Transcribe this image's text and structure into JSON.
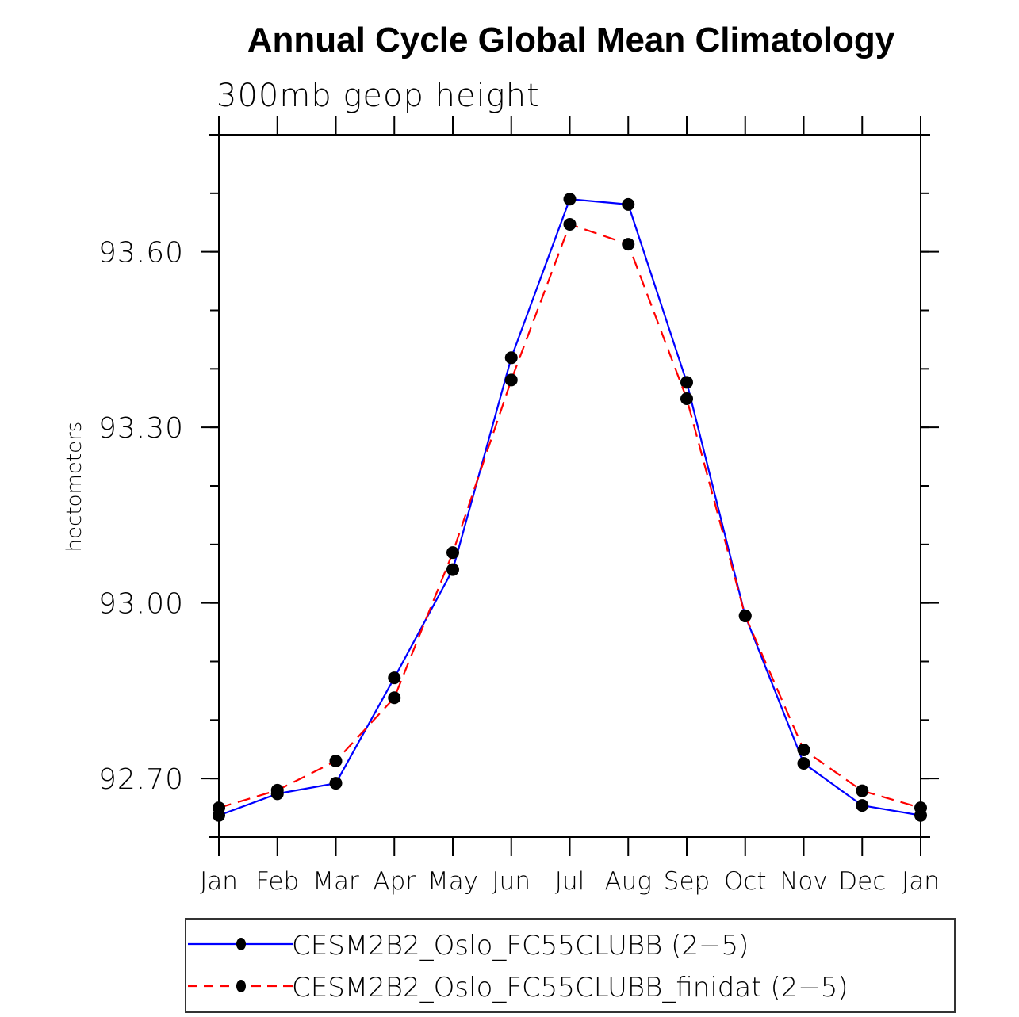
{
  "chart_data": {
    "type": "line",
    "title": "Annual Cycle Global Mean Climatology",
    "subtitle": "300mb geop height",
    "xlabel": "",
    "ylabel": "hectometers",
    "categories": [
      "Jan",
      "Feb",
      "Mar",
      "Apr",
      "May",
      "Jun",
      "Jul",
      "Aug",
      "Sep",
      "Oct",
      "Nov",
      "Dec",
      "Jan"
    ],
    "ylim": [
      92.6,
      93.8
    ],
    "y_major_ticks": [
      92.7,
      93.0,
      93.3,
      93.6
    ],
    "y_tick_labels": [
      "92.70",
      "93.00",
      "93.30",
      "93.60"
    ],
    "y_minor_step": 0.1,
    "grid": false,
    "legend_position": "bottom",
    "series": [
      {
        "name": "CESM2B2_Oslo_FC55CLUBB (2−5)",
        "color": "#0000ff",
        "line_style": "solid",
        "marker": "filled-circle",
        "marker_color": "#000000",
        "values": [
          92.637,
          92.674,
          92.692,
          92.872,
          93.057,
          93.419,
          93.69,
          93.681,
          93.377,
          92.978,
          92.726,
          92.654,
          92.637
        ]
      },
      {
        "name": "CESM2B2_Oslo_FC55CLUBB_finidat (2−5)",
        "color": "#ff0000",
        "line_style": "dashed",
        "marker": "filled-circle",
        "marker_color": "#000000",
        "values": [
          92.65,
          92.68,
          92.73,
          92.838,
          93.086,
          93.381,
          93.647,
          93.613,
          93.349,
          92.978,
          92.749,
          92.679,
          92.65
        ]
      }
    ]
  }
}
